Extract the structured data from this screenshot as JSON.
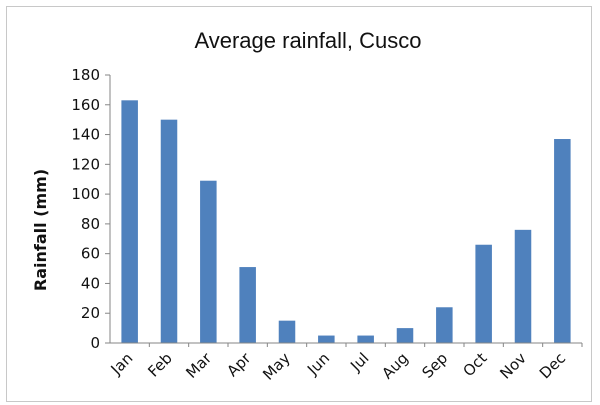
{
  "chart_data": {
    "type": "bar",
    "title": "Average rainfall, Cusco",
    "ylabel": "Rainfall (mm)",
    "xlabel": "",
    "categories": [
      "Jan",
      "Feb",
      "Mar",
      "Apr",
      "May",
      "Jun",
      "Jul",
      "Aug",
      "Sep",
      "Oct",
      "Nov",
      "Dec"
    ],
    "values": [
      163,
      150,
      109,
      51,
      15,
      5,
      5,
      10,
      24,
      66,
      76,
      137
    ],
    "ylim": [
      0,
      180
    ],
    "yticks": [
      "0",
      "20",
      "40",
      "60",
      "80",
      "100",
      "120",
      "140",
      "160",
      "180"
    ],
    "ytick_values": [
      0,
      20,
      40,
      60,
      80,
      100,
      120,
      140,
      160,
      180
    ],
    "bar_color": "#4f81bd",
    "grid": false,
    "legend": "none"
  }
}
